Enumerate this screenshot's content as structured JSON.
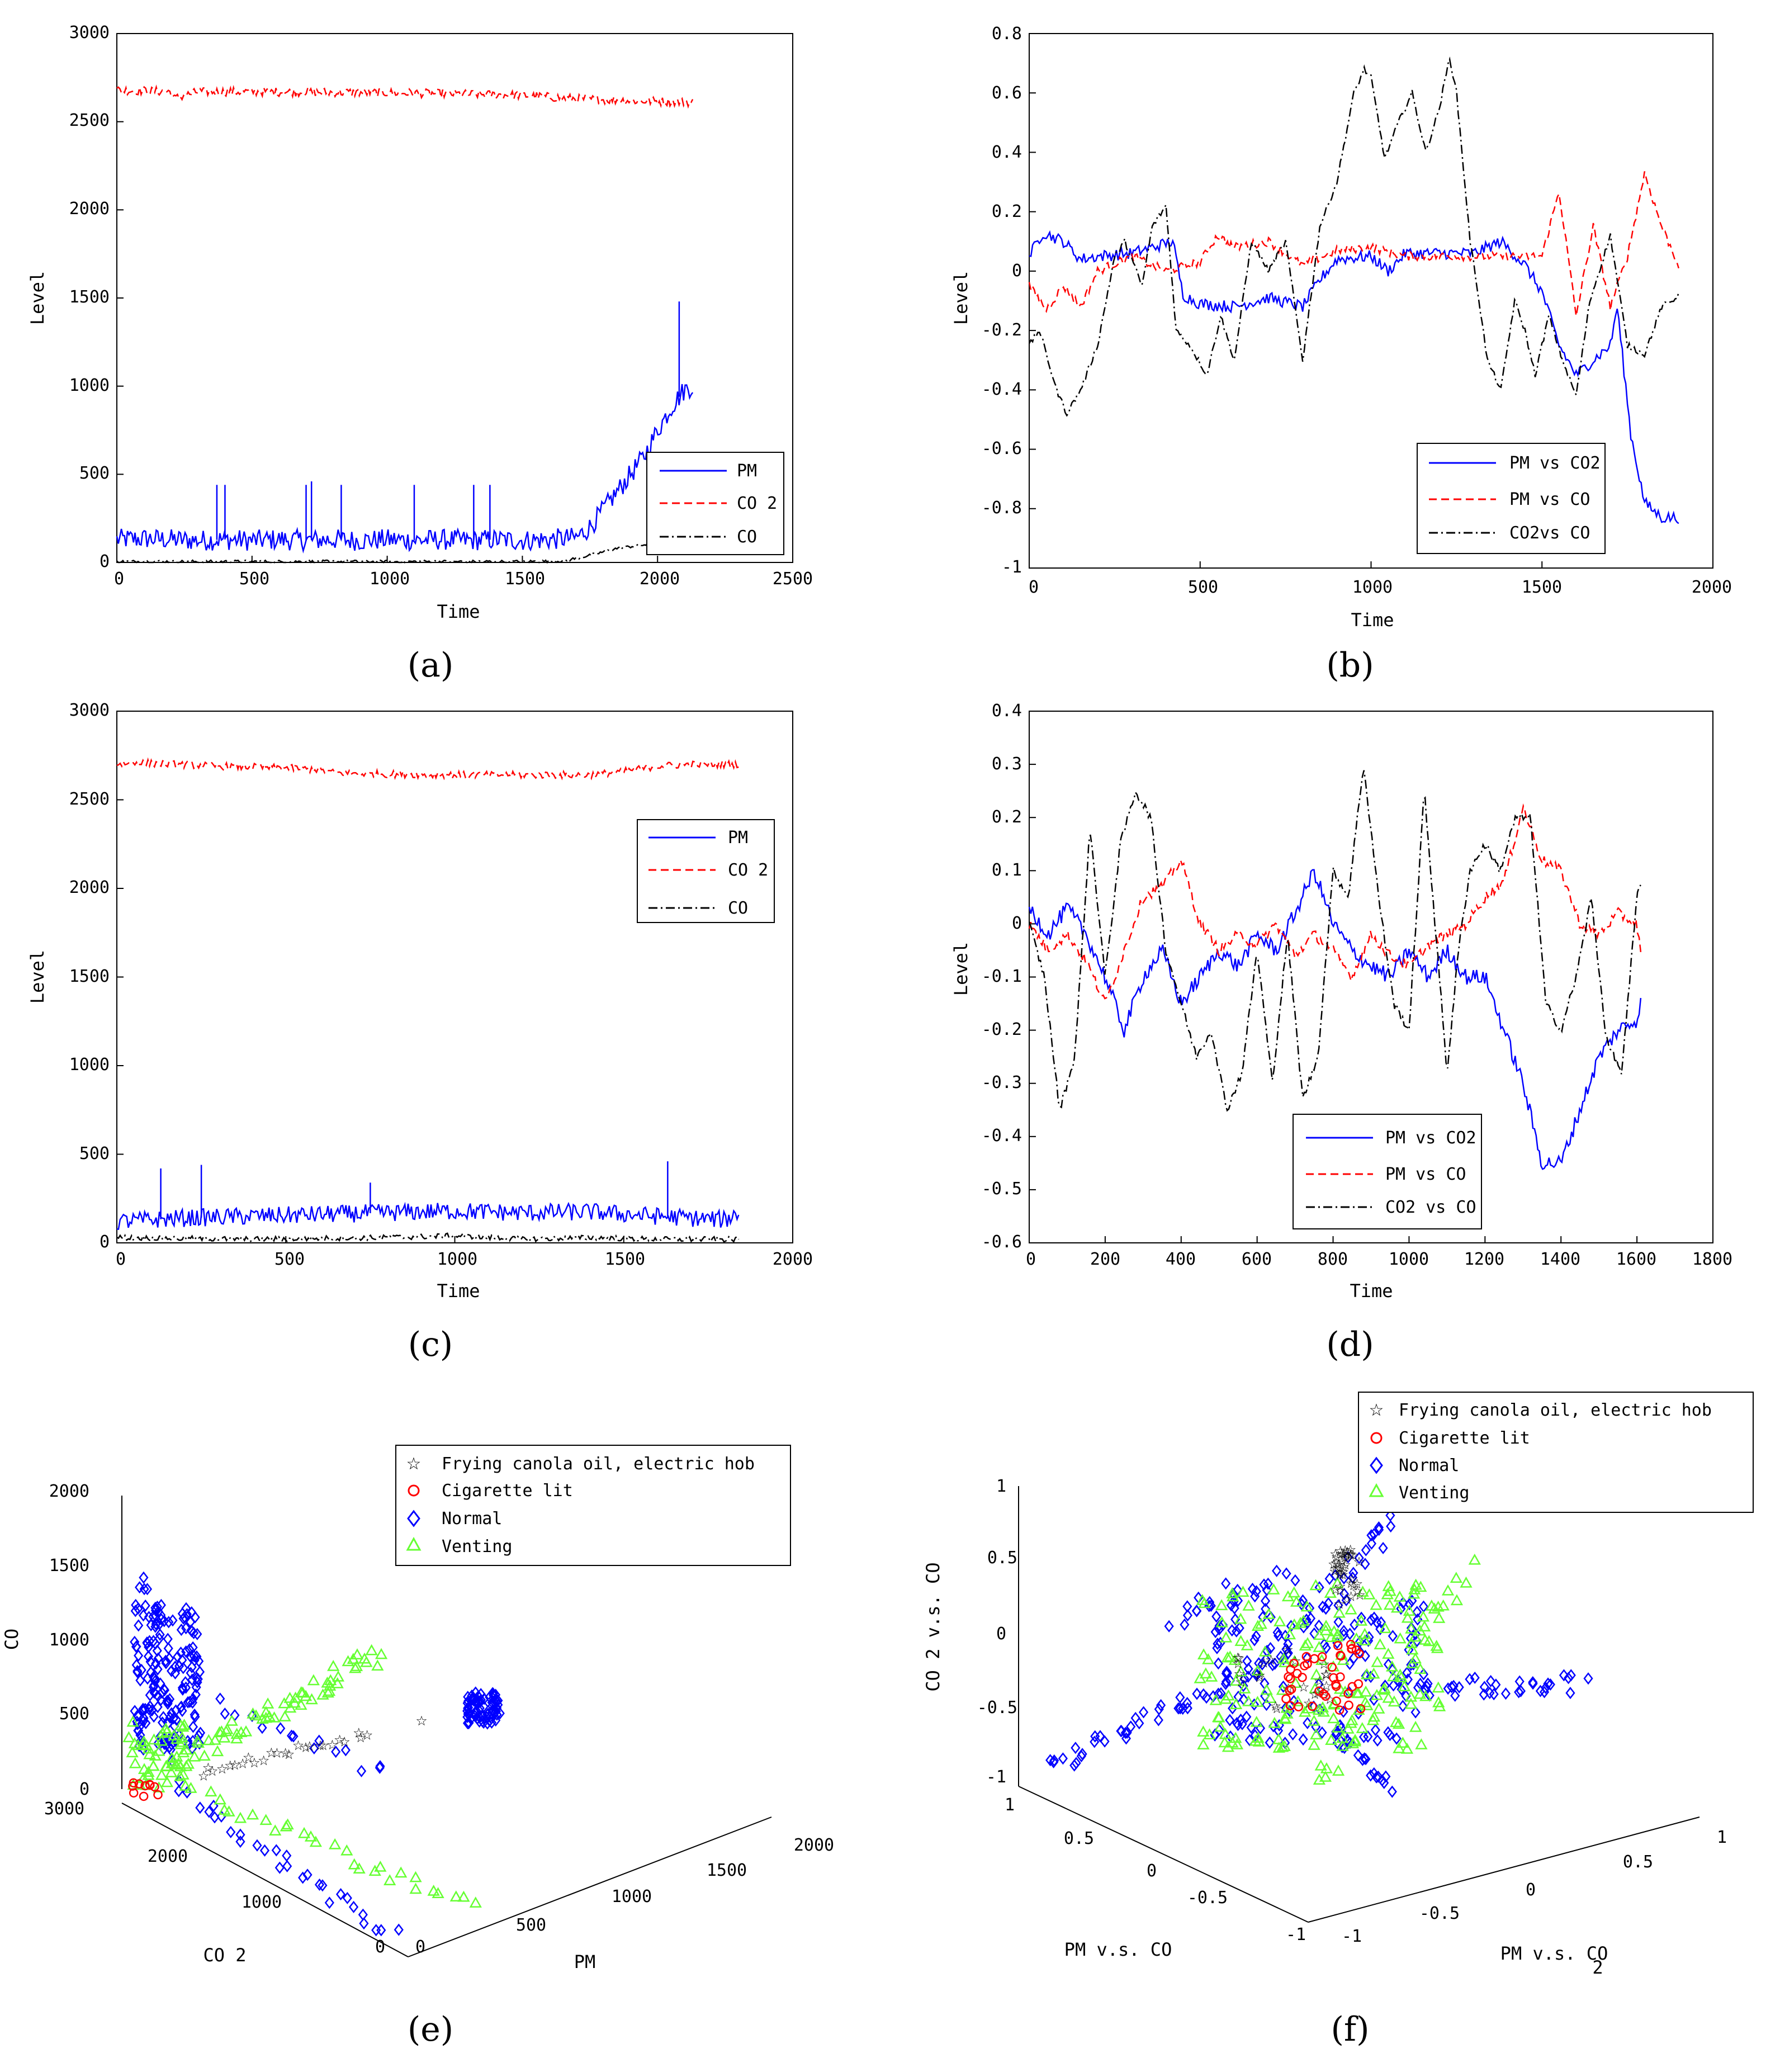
{
  "panel_labels": [
    "(a)",
    "(b)",
    "(c)",
    "(d)",
    "(e)",
    "(f)"
  ],
  "colors": {
    "pm": "#0000ff",
    "co2": "#ff0000",
    "co": "#000000",
    "frying": "#000000",
    "cigarette": "#ff0000",
    "normal": "#0000ff",
    "venting": "#66ff33"
  },
  "chart_data": [
    {
      "id": "a",
      "type": "line",
      "xlabel": "Time",
      "ylabel": "Level",
      "xlim": [
        0,
        2500
      ],
      "ylim": [
        0,
        3000
      ],
      "xticks": [
        "0",
        "500",
        "1000",
        "1500",
        "2000",
        "2500"
      ],
      "yticks": [
        "0",
        "500",
        "1000",
        "1500",
        "2000",
        "2500",
        "3000"
      ],
      "legend_position": "bottom-right",
      "series": [
        {
          "name": "PM",
          "style": "solid",
          "color": "#0000ff",
          "x": [
            0,
            100,
            200,
            300,
            400,
            500,
            600,
            700,
            800,
            900,
            1000,
            1100,
            1200,
            1300,
            1400,
            1500,
            1600,
            1700,
            1750,
            1800,
            1850,
            1900,
            1950,
            2000,
            2050,
            2100,
            2130
          ],
          "y": [
            130,
            135,
            130,
            125,
            130,
            125,
            130,
            125,
            130,
            125,
            130,
            125,
            130,
            125,
            130,
            125,
            130,
            140,
            200,
            300,
            400,
            500,
            600,
            750,
            880,
            980,
            1000
          ]
        },
        {
          "name": "CO 2",
          "style": "dashed",
          "color": "#ff0000",
          "x": [
            0,
            200,
            210,
            300,
            500,
            1000,
            1500,
            1700,
            1900,
            2130
          ],
          "y": [
            2680,
            2670,
            2630,
            2670,
            2670,
            2665,
            2650,
            2630,
            2620,
            2610
          ]
        },
        {
          "name": "CO",
          "style": "dashdot",
          "color": "#000000",
          "x": [
            0,
            500,
            1000,
            1500,
            1650,
            1750,
            1850,
            1950,
            2050,
            2130
          ],
          "y": [
            5,
            5,
            5,
            5,
            8,
            40,
            80,
            100,
            90,
            60
          ]
        }
      ],
      "spikes": [
        [
          370,
          440
        ],
        [
          400,
          440
        ],
        [
          700,
          440
        ],
        [
          720,
          460
        ],
        [
          830,
          440
        ],
        [
          1100,
          440
        ],
        [
          1320,
          440
        ],
        [
          1380,
          440
        ],
        [
          2080,
          1480
        ]
      ]
    },
    {
      "id": "b",
      "type": "line",
      "xlabel": "Time",
      "ylabel": "Level",
      "xlim": [
        0,
        2000
      ],
      "ylim": [
        -1,
        0.8
      ],
      "xticks": [
        "0",
        "500",
        "1000",
        "1500",
        "2000"
      ],
      "yticks": [
        "-1",
        "-0.8",
        "-0.6",
        "-0.4",
        "-0.2",
        "0",
        "0.2",
        "0.4",
        "0.6",
        "0.8"
      ],
      "legend_position": "bottom-right",
      "series": [
        {
          "name": "PM vs CO2",
          "style": "solid",
          "color": "#0000ff",
          "x": [
            0,
            40,
            100,
            150,
            200,
            300,
            420,
            450,
            500,
            600,
            700,
            800,
            850,
            900,
            1000,
            1050,
            1100,
            1200,
            1300,
            1380,
            1450,
            1500,
            1550,
            1600,
            1650,
            1700,
            1720,
            1760,
            1800,
            1850,
            1900
          ],
          "y": [
            0.05,
            0.13,
            0.1,
            0.04,
            0.05,
            0.06,
            0.1,
            -0.08,
            -0.11,
            -0.12,
            -0.09,
            -0.12,
            -0.03,
            0.04,
            0.05,
            0.0,
            0.06,
            0.06,
            0.06,
            0.1,
            0.02,
            -0.07,
            -0.25,
            -0.35,
            -0.3,
            -0.25,
            -0.12,
            -0.55,
            -0.78,
            -0.83,
            -0.83
          ]
        },
        {
          "name": "PM vs CO",
          "style": "dashed",
          "color": "#ff0000",
          "x": [
            0,
            50,
            100,
            150,
            200,
            300,
            400,
            500,
            550,
            600,
            700,
            800,
            900,
            1000,
            1100,
            1200,
            1300,
            1400,
            1500,
            1550,
            1600,
            1650,
            1700,
            1750,
            1800,
            1850,
            1900
          ],
          "y": [
            -0.05,
            -0.13,
            -0.05,
            -0.12,
            0.0,
            0.05,
            0.0,
            0.03,
            0.12,
            0.08,
            0.1,
            0.02,
            0.07,
            0.08,
            0.05,
            0.05,
            0.05,
            0.05,
            0.05,
            0.27,
            -0.15,
            0.15,
            -0.12,
            0.05,
            0.33,
            0.15,
            0.02
          ]
        },
        {
          "name": "CO2vs CO",
          "style": "dashdot",
          "color": "#000000",
          "x": [
            0,
            30,
            80,
            110,
            150,
            200,
            250,
            280,
            330,
            360,
            400,
            430,
            470,
            520,
            560,
            600,
            650,
            700,
            750,
            800,
            850,
            900,
            950,
            980,
            1000,
            1040,
            1080,
            1120,
            1160,
            1200,
            1230,
            1250,
            1290,
            1310,
            1340,
            1380,
            1420,
            1450,
            1480,
            1520,
            1560,
            1600,
            1640,
            1700,
            1750,
            1800,
            1850,
            1880,
            1900
          ],
          "y": [
            -0.25,
            -0.2,
            -0.4,
            -0.48,
            -0.4,
            -0.25,
            0.05,
            0.1,
            -0.05,
            0.15,
            0.22,
            -0.2,
            -0.25,
            -0.35,
            -0.15,
            -0.3,
            0.1,
            0.0,
            0.1,
            -0.3,
            0.15,
            0.3,
            0.6,
            0.68,
            0.65,
            0.38,
            0.5,
            0.6,
            0.4,
            0.55,
            0.72,
            0.6,
            0.1,
            -0.05,
            -0.3,
            -0.4,
            -0.1,
            -0.2,
            -0.35,
            -0.15,
            -0.3,
            -0.42,
            -0.1,
            0.12,
            -0.25,
            -0.28,
            -0.12,
            -0.1,
            -0.08
          ]
        }
      ]
    },
    {
      "id": "c",
      "type": "line",
      "xlabel": "Time",
      "ylabel": "Level",
      "xlim": [
        0,
        2000
      ],
      "ylim": [
        0,
        3000
      ],
      "xticks": [
        "0",
        "500",
        "1000",
        "1500",
        "2000"
      ],
      "yticks": [
        "0",
        "500",
        "1000",
        "1500",
        "2000",
        "2500",
        "3000"
      ],
      "legend_position": "top-right",
      "series": [
        {
          "name": "PM",
          "style": "solid",
          "color": "#0000ff",
          "x": [
            0,
            200,
            400,
            600,
            800,
            1000,
            1200,
            1400,
            1600,
            1800,
            1840
          ],
          "y": [
            120,
            140,
            150,
            160,
            170,
            180,
            170,
            175,
            150,
            130,
            170
          ]
        },
        {
          "name": "CO 2",
          "style": "dashed",
          "color": "#ff0000",
          "x": [
            0,
            50,
            300,
            500,
            600,
            650,
            800,
            1000,
            1200,
            1400,
            1500,
            1600,
            1700,
            1840
          ],
          "y": [
            2700,
            2710,
            2690,
            2680,
            2670,
            2650,
            2645,
            2640,
            2640,
            2640,
            2660,
            2690,
            2700,
            2700
          ]
        },
        {
          "name": "CO",
          "style": "dashdot",
          "color": "#000000",
          "x": [
            0,
            400,
            800,
            1000,
            1200,
            1400,
            1600,
            1840
          ],
          "y": [
            30,
            20,
            30,
            40,
            20,
            30,
            20,
            20
          ]
        }
      ],
      "spikes": [
        [
          130,
          420
        ],
        [
          250,
          440
        ],
        [
          1630,
          460
        ],
        [
          750,
          340
        ]
      ]
    },
    {
      "id": "d",
      "type": "line",
      "xlabel": "Time",
      "ylabel": "Level",
      "xlim": [
        0,
        1800
      ],
      "ylim": [
        -0.6,
        0.4
      ],
      "xticks": [
        "0",
        "200",
        "400",
        "600",
        "800",
        "1000",
        "1200",
        "1400",
        "1600",
        "1800"
      ],
      "yticks": [
        "-0.6",
        "-0.5",
        "-0.4",
        "-0.3",
        "-0.2",
        "-0.1",
        "0",
        "0.1",
        "0.2",
        "0.3",
        "0.4"
      ],
      "legend_position": "bottom-right",
      "series": [
        {
          "name": "PM vs CO2",
          "style": "solid",
          "color": "#0000ff",
          "x": [
            0,
            50,
            100,
            150,
            200,
            250,
            300,
            350,
            400,
            450,
            500,
            550,
            600,
            650,
            700,
            750,
            800,
            850,
            900,
            950,
            1000,
            1050,
            1100,
            1150,
            1200,
            1250,
            1300,
            1350,
            1400,
            1450,
            1500,
            1550,
            1600,
            1610
          ],
          "y": [
            0.03,
            -0.02,
            0.03,
            -0.02,
            -0.1,
            -0.2,
            -0.1,
            -0.05,
            -0.15,
            -0.1,
            -0.05,
            -0.08,
            -0.02,
            -0.05,
            0.02,
            0.1,
            0.0,
            -0.05,
            -0.08,
            -0.1,
            -0.05,
            -0.1,
            -0.05,
            -0.1,
            -0.1,
            -0.2,
            -0.3,
            -0.45,
            -0.45,
            -0.35,
            -0.25,
            -0.2,
            -0.18,
            -0.15
          ]
        },
        {
          "name": "PM vs CO",
          "style": "dashed",
          "color": "#ff0000",
          "x": [
            0,
            50,
            100,
            150,
            200,
            250,
            300,
            350,
            400,
            450,
            500,
            550,
            600,
            650,
            700,
            750,
            800,
            850,
            900,
            950,
            1000,
            1050,
            1100,
            1150,
            1200,
            1250,
            1300,
            1350,
            1400,
            1450,
            1500,
            1550,
            1600,
            1610
          ],
          "y": [
            0.0,
            -0.05,
            -0.02,
            -0.07,
            -0.15,
            -0.05,
            0.05,
            0.07,
            0.12,
            0.0,
            -0.05,
            -0.02,
            -0.04,
            0.0,
            -0.06,
            -0.02,
            -0.05,
            -0.1,
            -0.02,
            -0.06,
            -0.08,
            -0.04,
            -0.02,
            0.0,
            0.05,
            0.08,
            0.22,
            0.12,
            0.1,
            0.0,
            -0.02,
            0.02,
            0.0,
            -0.05
          ]
        },
        {
          "name": "CO2 vs CO",
          "style": "dashdot",
          "color": "#000000",
          "x": [
            0,
            40,
            80,
            120,
            160,
            200,
            240,
            280,
            320,
            360,
            400,
            440,
            480,
            520,
            560,
            600,
            640,
            680,
            720,
            760,
            800,
            840,
            880,
            920,
            960,
            1000,
            1040,
            1080,
            1100,
            1130,
            1160,
            1200,
            1240,
            1280,
            1320,
            1360,
            1400,
            1440,
            1480,
            1520,
            1560,
            1600,
            1610
          ],
          "y": [
            0.0,
            -0.1,
            -0.35,
            -0.25,
            0.18,
            -0.1,
            0.15,
            0.25,
            0.2,
            -0.05,
            -0.15,
            -0.25,
            -0.2,
            -0.35,
            -0.28,
            -0.05,
            -0.3,
            -0.02,
            -0.33,
            -0.25,
            0.1,
            0.05,
            0.3,
            0.05,
            -0.15,
            -0.2,
            0.25,
            -0.1,
            -0.28,
            -0.05,
            0.1,
            0.15,
            0.1,
            0.2,
            0.2,
            -0.15,
            -0.2,
            -0.1,
            0.05,
            -0.22,
            -0.28,
            0.05,
            0.08
          ]
        }
      ]
    },
    {
      "id": "e",
      "type": "scatter",
      "xlabel": "PM",
      "ylabel": "CO",
      "zlabel": "CO 2",
      "xticks": [
        "0",
        "500",
        "1000",
        "1500",
        "2000"
      ],
      "yticks": [
        "0",
        "1000",
        "2000",
        "3000"
      ],
      "zticks": [
        "0",
        "500",
        "1000",
        "1500",
        "2000"
      ],
      "legend_position": "top-right",
      "legend": [
        "Frying canola oil, electric hob",
        "Cigarette lit",
        "Normal",
        "Venting"
      ]
    },
    {
      "id": "f",
      "type": "scatter",
      "xlabel": "PM v.s. CO",
      "ylabel": "PM v.s. CO",
      "zlabel": "CO 2 v.s. CO",
      "xticks": [
        "-1",
        "-0.5",
        "0",
        "0.5",
        "1"
      ],
      "yticks": [
        "-1",
        "-0.5",
        "0",
        "0.5",
        "1"
      ],
      "zticks": [
        "-1",
        "-0.5",
        "0",
        "0.5",
        "1"
      ],
      "ylabel_subscript": "2",
      "legend_position": "top-right",
      "legend": [
        "Frying canola oil, electric hob",
        "Cigarette lit",
        "Normal",
        "Venting"
      ]
    }
  ]
}
